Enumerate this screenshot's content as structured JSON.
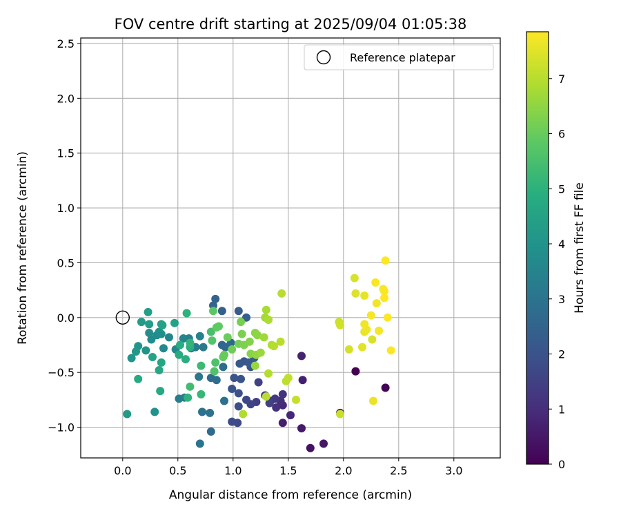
{
  "chart_data": {
    "type": "scatter",
    "title": "FOV centre drift starting at 2025/09/04 01:05:38",
    "xlabel": "Angular distance from reference (arcmin)",
    "ylabel": "Rotation from reference (arcmin)",
    "xlim": [
      -0.38,
      3.42
    ],
    "ylim": [
      -1.28,
      2.55
    ],
    "xticks": [
      "0.0",
      "0.5",
      "1.0",
      "1.5",
      "2.0",
      "2.5",
      "3.0"
    ],
    "xtick_values": [
      0,
      0.5,
      1,
      1.5,
      2,
      2.5,
      3
    ],
    "yticks": [
      "−1.0",
      "−0.5",
      "0.0",
      "0.5",
      "1.0",
      "1.5",
      "2.0",
      "2.5"
    ],
    "ytick_values": [
      -1,
      -0.5,
      0,
      0.5,
      1,
      1.5,
      2,
      2.5
    ],
    "grid": true,
    "colormap": "viridis",
    "legend": {
      "position": "top-right",
      "label": "Reference platepar"
    },
    "reference_point": {
      "x": 0.0,
      "y": 0.0
    },
    "colorbar": {
      "label": "Hours from first FF file",
      "range": [
        0,
        7.85
      ],
      "ticks": [
        "0",
        "1",
        "2",
        "3",
        "4",
        "5",
        "6",
        "7"
      ],
      "tick_values": [
        0,
        1,
        2,
        3,
        4,
        5,
        6,
        7
      ]
    },
    "points": [
      [
        2.11,
        -0.49,
        0.0
      ],
      [
        2.38,
        -0.64,
        0.05
      ],
      [
        1.97,
        -0.87,
        0.2
      ],
      [
        1.7,
        -1.19,
        0.35
      ],
      [
        1.82,
        -1.15,
        0.45
      ],
      [
        1.62,
        -1.01,
        0.55
      ],
      [
        1.45,
        -0.96,
        0.65
      ],
      [
        1.63,
        -0.57,
        0.7
      ],
      [
        1.62,
        -0.35,
        0.75
      ],
      [
        1.52,
        -0.89,
        0.85
      ],
      [
        1.45,
        -0.8,
        0.9
      ],
      [
        1.43,
        -0.76,
        1.0
      ],
      [
        1.39,
        -0.82,
        1.1
      ],
      [
        1.45,
        -0.7,
        1.15
      ],
      [
        1.34,
        -0.76,
        1.2
      ],
      [
        1.38,
        -0.74,
        1.3
      ],
      [
        1.29,
        -0.71,
        1.35
      ],
      [
        1.21,
        -0.77,
        1.45
      ],
      [
        1.23,
        -0.59,
        1.5
      ],
      [
        1.33,
        -0.78,
        1.55
      ],
      [
        1.16,
        -0.79,
        1.6
      ],
      [
        1.12,
        -0.75,
        1.7
      ],
      [
        1.04,
        -0.96,
        1.75
      ],
      [
        0.99,
        -0.95,
        1.8
      ],
      [
        1.05,
        -0.81,
        1.85
      ],
      [
        1.05,
        -0.69,
        1.9
      ],
      [
        1.01,
        -0.55,
        1.95
      ],
      [
        0.99,
        -0.65,
        2.0
      ],
      [
        1.07,
        -0.56,
        2.0
      ],
      [
        1.1,
        -0.4,
        2.05
      ],
      [
        1.16,
        -0.45,
        2.1
      ],
      [
        1.06,
        -0.42,
        2.15
      ],
      [
        1.14,
        -0.41,
        2.2
      ],
      [
        1.19,
        -0.37,
        2.25
      ],
      [
        1.05,
        0.06,
        2.3
      ],
      [
        1.12,
        0.0,
        2.35
      ],
      [
        0.9,
        0.06,
        2.4
      ],
      [
        0.84,
        0.17,
        2.45
      ],
      [
        0.82,
        0.11,
        2.5
      ],
      [
        0.9,
        -0.25,
        2.55
      ],
      [
        0.93,
        -0.27,
        2.6
      ],
      [
        0.98,
        -0.23,
        2.65
      ],
      [
        0.91,
        -0.45,
        2.7
      ],
      [
        0.8,
        -0.55,
        2.75
      ],
      [
        0.85,
        -0.57,
        2.8
      ],
      [
        0.92,
        -0.76,
        2.85
      ],
      [
        0.79,
        -0.87,
        2.9
      ],
      [
        0.72,
        -0.86,
        2.95
      ],
      [
        0.7,
        -1.15,
        3.0
      ],
      [
        0.8,
        -1.04,
        2.7
      ],
      [
        0.69,
        -0.54,
        3.1
      ],
      [
        0.66,
        -0.27,
        3.15
      ],
      [
        0.73,
        -0.27,
        3.2
      ],
      [
        0.62,
        -0.28,
        3.25
      ],
      [
        0.51,
        -0.74,
        3.3
      ],
      [
        0.56,
        -0.73,
        3.35
      ],
      [
        0.6,
        -0.19,
        3.4
      ],
      [
        0.7,
        -0.17,
        3.45
      ],
      [
        0.55,
        -0.19,
        3.5
      ],
      [
        0.42,
        -0.18,
        3.55
      ],
      [
        0.48,
        -0.29,
        3.6
      ],
      [
        0.37,
        -0.28,
        3.65
      ],
      [
        0.31,
        -0.16,
        3.7
      ],
      [
        0.26,
        -0.2,
        3.75
      ],
      [
        0.24,
        -0.14,
        3.8
      ],
      [
        0.35,
        -0.15,
        3.85
      ],
      [
        0.33,
        -0.13,
        3.9
      ],
      [
        0.29,
        -0.86,
        3.95
      ],
      [
        0.21,
        -0.3,
        4.0
      ],
      [
        0.14,
        -0.26,
        4.05
      ],
      [
        0.08,
        -0.37,
        4.1
      ],
      [
        0.12,
        -0.31,
        4.15
      ],
      [
        0.04,
        -0.88,
        4.2
      ],
      [
        0.17,
        -0.04,
        4.25
      ],
      [
        0.24,
        -0.06,
        4.3
      ],
      [
        0.23,
        0.05,
        4.35
      ],
      [
        0.35,
        -0.06,
        4.4
      ],
      [
        0.47,
        -0.05,
        4.45
      ],
      [
        0.36,
        -0.07,
        4.5
      ],
      [
        0.27,
        -0.36,
        4.55
      ],
      [
        0.35,
        -0.41,
        4.6
      ],
      [
        0.33,
        -0.48,
        4.65
      ],
      [
        0.34,
        -0.67,
        4.7
      ],
      [
        0.14,
        -0.56,
        4.75
      ],
      [
        0.51,
        -0.34,
        4.8
      ],
      [
        0.52,
        -0.25,
        4.85
      ],
      [
        0.57,
        -0.38,
        4.9
      ],
      [
        0.61,
        -0.27,
        4.95
      ],
      [
        0.58,
        0.04,
        5.0
      ],
      [
        0.59,
        -0.73,
        5.05
      ],
      [
        0.61,
        -0.23,
        5.1
      ],
      [
        0.71,
        -0.7,
        5.2
      ],
      [
        0.71,
        -0.44,
        5.3
      ],
      [
        0.61,
        -0.63,
        5.4
      ],
      [
        0.8,
        -0.13,
        5.5
      ],
      [
        0.84,
        -0.41,
        5.6
      ],
      [
        0.83,
        -0.49,
        5.65
      ],
      [
        0.81,
        -0.21,
        5.7
      ],
      [
        0.82,
        0.06,
        5.8
      ],
      [
        0.85,
        -0.09,
        5.85
      ],
      [
        0.87,
        -0.08,
        5.9
      ],
      [
        0.91,
        -0.36,
        5.95
      ],
      [
        0.92,
        -0.34,
        6.0
      ],
      [
        0.95,
        -0.18,
        6.05
      ],
      [
        0.99,
        -0.29,
        6.1
      ],
      [
        1.05,
        -0.24,
        6.15
      ],
      [
        1.07,
        -0.04,
        6.2
      ],
      [
        1.08,
        -0.15,
        6.25
      ],
      [
        1.1,
        -0.25,
        6.3
      ],
      [
        1.15,
        -0.22,
        6.35
      ],
      [
        1.16,
        -0.33,
        6.4
      ],
      [
        1.2,
        -0.14,
        6.45
      ],
      [
        1.22,
        -0.16,
        6.5
      ],
      [
        1.21,
        -0.34,
        6.55
      ],
      [
        1.2,
        -0.44,
        6.6
      ],
      [
        1.25,
        -0.32,
        6.65
      ],
      [
        1.28,
        -0.18,
        6.7
      ],
      [
        1.29,
        0.0,
        6.75
      ],
      [
        1.3,
        0.07,
        6.8
      ],
      [
        1.32,
        -0.02,
        6.85
      ],
      [
        1.35,
        -0.25,
        6.9
      ],
      [
        1.37,
        -0.26,
        6.95
      ],
      [
        1.43,
        -0.22,
        7.0
      ],
      [
        1.44,
        0.22,
        7.0
      ],
      [
        1.32,
        -0.51,
        6.95
      ],
      [
        1.3,
        -0.72,
        7.0
      ],
      [
        1.09,
        -0.88,
        6.9
      ],
      [
        1.48,
        -0.58,
        7.05
      ],
      [
        1.5,
        -0.55,
        7.1
      ],
      [
        1.57,
        -0.75,
        7.15
      ],
      [
        1.97,
        -0.88,
        7.2
      ],
      [
        1.96,
        -0.04,
        7.25
      ],
      [
        1.97,
        -0.07,
        7.3
      ],
      [
        2.05,
        -0.29,
        7.35
      ],
      [
        2.1,
        0.36,
        7.4
      ],
      [
        2.11,
        0.22,
        7.45
      ],
      [
        2.17,
        -0.27,
        7.5
      ],
      [
        2.19,
        0.2,
        7.55
      ],
      [
        2.19,
        -0.13,
        7.6
      ],
      [
        2.21,
        -0.11,
        7.65
      ],
      [
        2.19,
        -0.06,
        7.7
      ],
      [
        2.25,
        0.02,
        7.75
      ],
      [
        2.26,
        -0.2,
        7.4
      ],
      [
        2.27,
        -0.76,
        7.6
      ],
      [
        2.29,
        0.32,
        7.8
      ],
      [
        2.3,
        0.13,
        7.7
      ],
      [
        2.32,
        -0.12,
        7.75
      ],
      [
        2.36,
        0.26,
        7.8
      ],
      [
        2.37,
        0.24,
        7.8
      ],
      [
        2.37,
        0.18,
        7.85
      ],
      [
        2.38,
        0.52,
        7.85
      ],
      [
        2.4,
        0.0,
        7.85
      ],
      [
        2.43,
        -0.3,
        7.85
      ]
    ]
  }
}
